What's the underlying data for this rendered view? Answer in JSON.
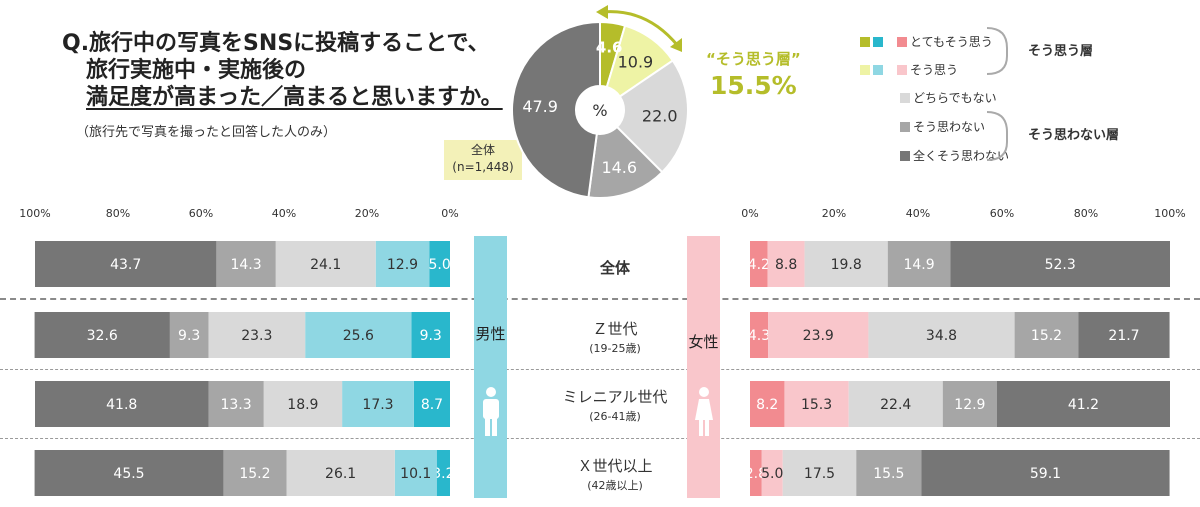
{
  "title": {
    "line1": "Q.旅行中の写真をSNSに投稿することで、",
    "line2": "旅行実施中・実施後の",
    "line3": "満足度が高まった／高まると思いますか。"
  },
  "subtitle": "（旅行先で写真を撮ったと回答した人のみ）",
  "total_box": {
    "line1": "全体",
    "line2": "(n=1,448)"
  },
  "donut_center": "%",
  "agree_callout": {
    "label": "“そう思う層”",
    "value": "15.5%"
  },
  "legend": {
    "items": [
      "とてもそう思う",
      "そう思う",
      "どちらでもない",
      "そう思わない",
      "全くそう思わない"
    ],
    "group_agree": "そう思う層",
    "group_disagree": "そう思わない層"
  },
  "colors": {
    "very_agree_female": "#f28b90",
    "agree_female": "#f9c6cb",
    "very_agree_male": "#29b7cc",
    "agree_male": "#8fd7e3",
    "neutral": "#d9d9d9",
    "disagree": "#a6a6a6",
    "strongly_disagree": "#767676",
    "donut_very_agree": "#b5bd2a",
    "donut_agree": "#eef3a5",
    "male_panel": "#8fd7e3",
    "female_panel": "#f9c6cb"
  },
  "gender": {
    "male": "男性",
    "female": "女性"
  },
  "rows": [
    {
      "main": "全体",
      "sub": ""
    },
    {
      "main": "Ｚ世代",
      "sub": "(19-25歳)"
    },
    {
      "main": "ミレニアル世代",
      "sub": "(26-41歳)"
    },
    {
      "main": "Ｘ世代以上",
      "sub": "(42歳以上)"
    }
  ],
  "male_ticks": [
    "100%",
    "80%",
    "60%",
    "40%",
    "20%",
    "0%"
  ],
  "female_ticks": [
    "0%",
    "20%",
    "40%",
    "60%",
    "80%",
    "100%"
  ],
  "chart_data": [
    {
      "type": "pie",
      "categories": [
        "とてもそう思う",
        "そう思う",
        "どちらでもない",
        "そう思わない",
        "全くそう思わない"
      ],
      "values": [
        4.6,
        10.9,
        22.0,
        14.6,
        47.9
      ],
      "labels": [
        "4.6",
        "10.9",
        "22.0",
        "14.6",
        "47.9"
      ]
    },
    {
      "type": "bar",
      "orientation": "horizontal-stacked",
      "side": "male",
      "categories": [
        "全体",
        "Ｚ世代",
        "ミレニアル世代",
        "Ｘ世代以上"
      ],
      "series": [
        {
          "name": "とてもそう思う",
          "values": [
            5.0,
            9.3,
            8.7,
            3.2
          ]
        },
        {
          "name": "そう思う",
          "values": [
            12.9,
            25.6,
            17.3,
            10.1
          ]
        },
        {
          "name": "どちらでもない",
          "values": [
            24.1,
            23.3,
            18.9,
            26.1
          ]
        },
        {
          "name": "そう思わない",
          "values": [
            14.3,
            9.3,
            13.3,
            15.2
          ]
        },
        {
          "name": "全くそう思わない",
          "values": [
            43.7,
            32.6,
            41.8,
            45.5
          ]
        }
      ],
      "xlim": [
        0,
        100
      ]
    },
    {
      "type": "bar",
      "orientation": "horizontal-stacked",
      "side": "female",
      "categories": [
        "全体",
        "Ｚ世代",
        "ミレニアル世代",
        "Ｘ世代以上"
      ],
      "series": [
        {
          "name": "とてもそう思う",
          "values": [
            4.2,
            4.3,
            8.2,
            2.8
          ]
        },
        {
          "name": "そう思う",
          "values": [
            8.8,
            23.9,
            15.3,
            5.0
          ]
        },
        {
          "name": "どちらでもない",
          "values": [
            19.8,
            34.8,
            22.4,
            17.5
          ]
        },
        {
          "name": "そう思わない",
          "values": [
            14.9,
            15.2,
            12.9,
            15.5
          ]
        },
        {
          "name": "全くそう思わない",
          "values": [
            52.3,
            21.7,
            41.2,
            59.1
          ]
        }
      ],
      "xlim": [
        0,
        100
      ]
    }
  ]
}
